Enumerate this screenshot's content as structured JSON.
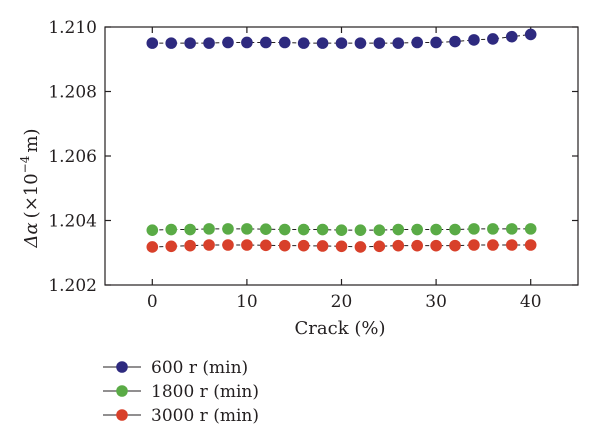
{
  "chart_data": {
    "type": "line",
    "xlabel": "Crack (%)",
    "ylabel": "Δα (×10⁻⁴ m)",
    "ylabel_parts": {
      "symbol": "Δα",
      "prefix": "(×10",
      "exponent": "−4",
      "suffix": "m)"
    },
    "xlim": [
      -5,
      45
    ],
    "ylim": [
      1.202,
      1.21
    ],
    "xticks": [
      0,
      10,
      20,
      30,
      40
    ],
    "xtick_labels": [
      "0",
      "10",
      "20",
      "30",
      "40"
    ],
    "yticks": [
      1.202,
      1.204,
      1.206,
      1.208,
      1.21
    ],
    "ytick_labels": [
      "1.202",
      "1.204",
      "1.206",
      "1.208",
      "1.210"
    ],
    "grid": false,
    "legend_position": "bottom-left, below plot",
    "x": [
      0,
      2,
      4,
      6,
      8,
      10,
      12,
      14,
      16,
      18,
      20,
      22,
      24,
      26,
      28,
      30,
      32,
      34,
      36,
      38,
      40
    ],
    "series": [
      {
        "name": "600 r (min)",
        "color": "#2e2a7f",
        "values": [
          1.2095,
          1.2095,
          1.2095,
          1.2095,
          1.20952,
          1.20952,
          1.20952,
          1.20952,
          1.2095,
          1.2095,
          1.2095,
          1.2095,
          1.2095,
          1.2095,
          1.20952,
          1.20952,
          1.20955,
          1.2096,
          1.20963,
          1.2097,
          1.20977
        ]
      },
      {
        "name": "1800 r (min)",
        "color": "#5aab46",
        "values": [
          1.2037,
          1.20372,
          1.20372,
          1.20374,
          1.20374,
          1.20374,
          1.20373,
          1.20372,
          1.20372,
          1.20372,
          1.2037,
          1.2037,
          1.2037,
          1.20372,
          1.20372,
          1.20372,
          1.20372,
          1.20374,
          1.20374,
          1.20374,
          1.20374
        ]
      },
      {
        "name": "3000 r (min)",
        "color": "#d8402a",
        "values": [
          1.20318,
          1.2032,
          1.20322,
          1.20324,
          1.20324,
          1.20324,
          1.20323,
          1.20322,
          1.20322,
          1.20321,
          1.2032,
          1.20318,
          1.2032,
          1.20322,
          1.20322,
          1.20322,
          1.20322,
          1.20324,
          1.20324,
          1.20324,
          1.20324
        ]
      }
    ]
  }
}
